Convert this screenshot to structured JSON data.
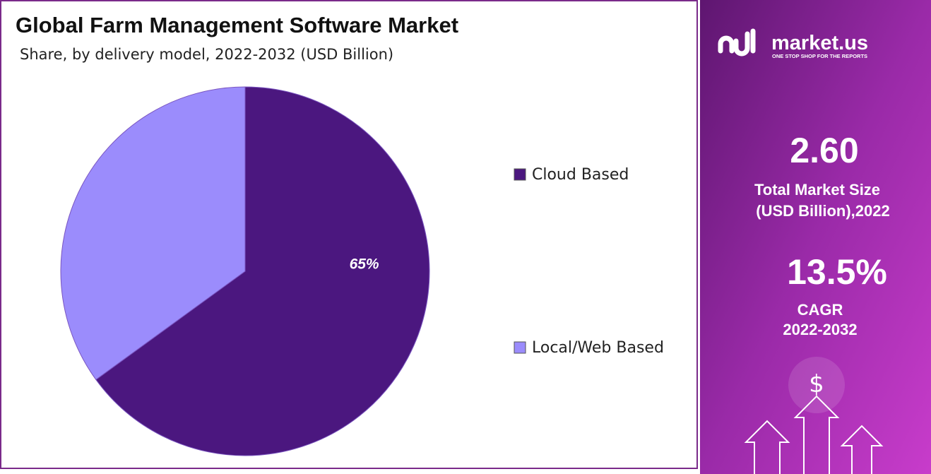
{
  "chart_data": {
    "type": "pie",
    "title": "Global Farm Management Software Market",
    "subtitle": "Share, by delivery model, 2022-2032  (USD Billion)",
    "categories": [
      "Cloud Based",
      "Local/Web Based"
    ],
    "values": [
      65,
      35
    ],
    "value_labels": [
      "65%",
      null
    ],
    "colors": [
      "#4b177f",
      "#9b8cfc"
    ]
  },
  "side_panel": {
    "logo": "market.us",
    "tagline": "ONE STOP SHOP FOR THE REPORTS",
    "market_size": "2.60",
    "market_size_label_1": "Total Market Size",
    "market_size_label_2": "(USD Billion),2022",
    "cagr": "13.5%",
    "cagr_label_1": "CAGR",
    "cagr_label_2": "2022-2032",
    "icon": "$"
  }
}
